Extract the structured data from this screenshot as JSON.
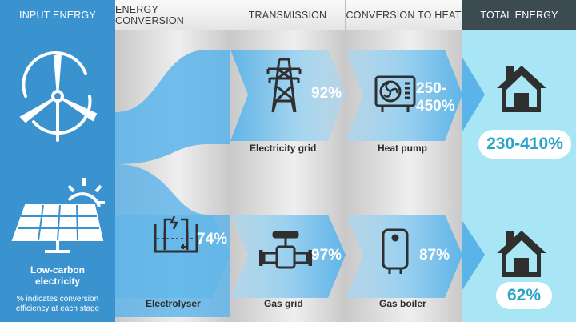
{
  "headers": {
    "input": "INPUT ENERGY",
    "conversion": "ENERGY CONVERSION",
    "transmission": "TRANSMISSION",
    "to_heat": "CONVERSION TO HEAT",
    "total": "TOTAL ENERGY"
  },
  "input": {
    "source_label_line1": "Low-carbon",
    "source_label_line2": "electricity",
    "note_line1": "% indicates conversion",
    "note_line2": "efficiency at each stage"
  },
  "electric_path": {
    "grid_label": "Electricity grid",
    "grid_efficiency": "92%",
    "heater_label": "Heat pump",
    "heater_efficiency_line1": "250-",
    "heater_efficiency_line2": "450%",
    "total": "230-410%"
  },
  "gas_path": {
    "converter_label": "Electrolyser",
    "converter_efficiency": "74%",
    "grid_label": "Gas grid",
    "grid_efficiency": "97%",
    "heater_label": "Gas boiler",
    "heater_efficiency": "87%",
    "total": "62%"
  },
  "colors": {
    "input_blue": "#3a93cf",
    "flow_blue": "#5ab4ea",
    "total_cyan": "#a9e6f5",
    "total_header": "#3c4a52",
    "icon_dark": "#2f2f2f"
  },
  "icons": [
    "wind-turbine-icon",
    "solar-panel-icon",
    "electrolyser-icon",
    "pylon-icon",
    "gas-valve-icon",
    "heat-pump-icon",
    "gas-boiler-icon",
    "house-icon"
  ]
}
